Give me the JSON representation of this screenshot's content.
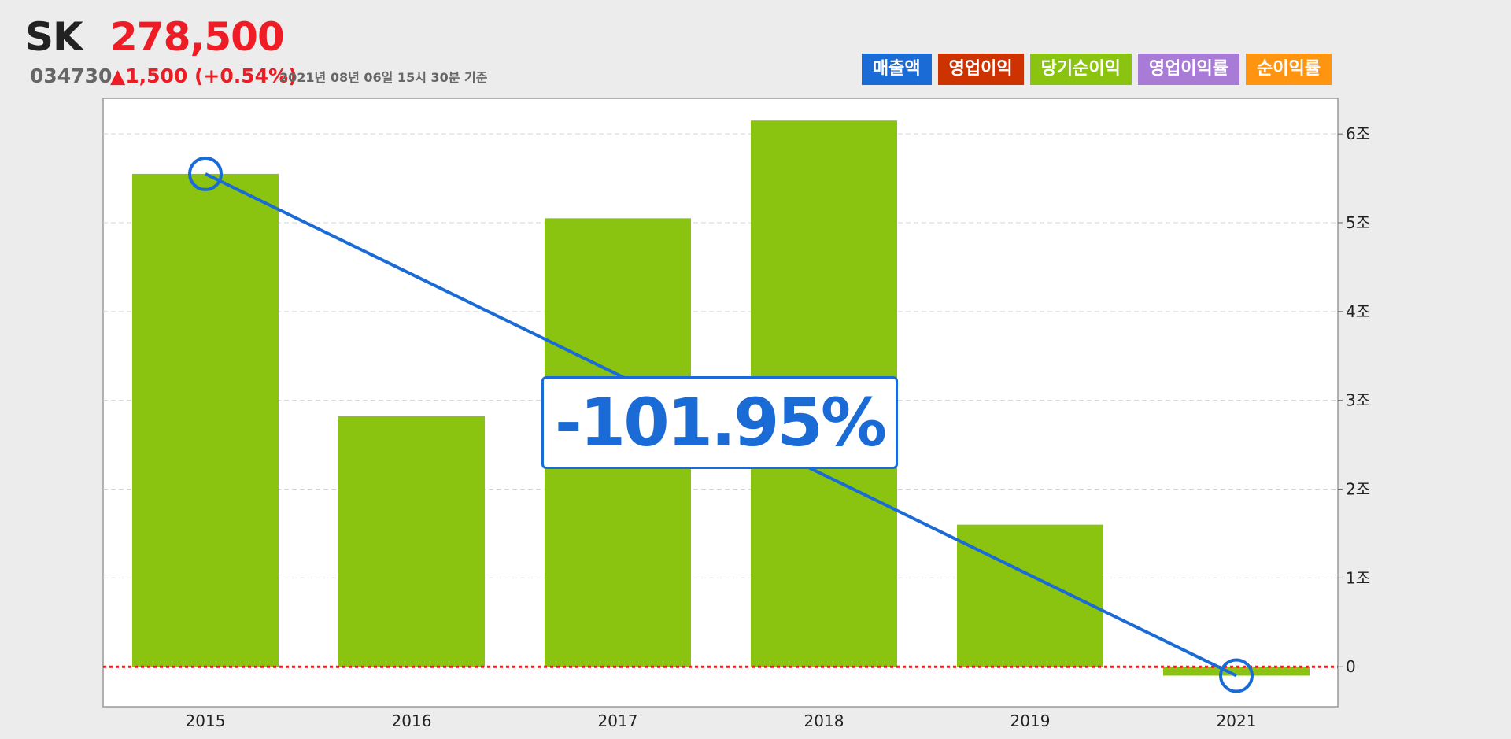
{
  "header": {
    "name": "SK",
    "price": "278,500",
    "code": "034730",
    "change": "▲1,500 (+0.54%)",
    "as_of": "2021년 08년 06일 15시 30분 기준"
  },
  "legend": [
    {
      "label": "매출액",
      "color": "#1a6bd6"
    },
    {
      "label": "영업이익",
      "color": "#cc3300"
    },
    {
      "label": "당기순이익",
      "color": "#8ac411"
    },
    {
      "label": "영업이익률",
      "color": "#a77bd6"
    },
    {
      "label": "순이익률",
      "color": "#ff9411"
    }
  ],
  "callout": "-101.95%",
  "chart_data": {
    "type": "bar",
    "categories": [
      "2015",
      "2016",
      "2017",
      "2018",
      "2019",
      "2021"
    ],
    "series": [
      {
        "name": "당기순이익",
        "values": [
          5.55,
          2.82,
          5.05,
          6.15,
          1.6,
          -0.1
        ],
        "color": "#8ac411"
      }
    ],
    "ylim": [
      -0.45,
      6.4
    ],
    "yticks": [
      0,
      1,
      2,
      3,
      4,
      5,
      6
    ],
    "ytick_labels": [
      "0",
      "1조",
      "2조",
      "3조",
      "4조",
      "5조",
      "6조"
    ],
    "grid": true,
    "zero_line_color": "#ee1c25",
    "trend": {
      "from": "2015",
      "to": "2021",
      "change": "-101.95%",
      "color": "#1a6bd6"
    }
  }
}
